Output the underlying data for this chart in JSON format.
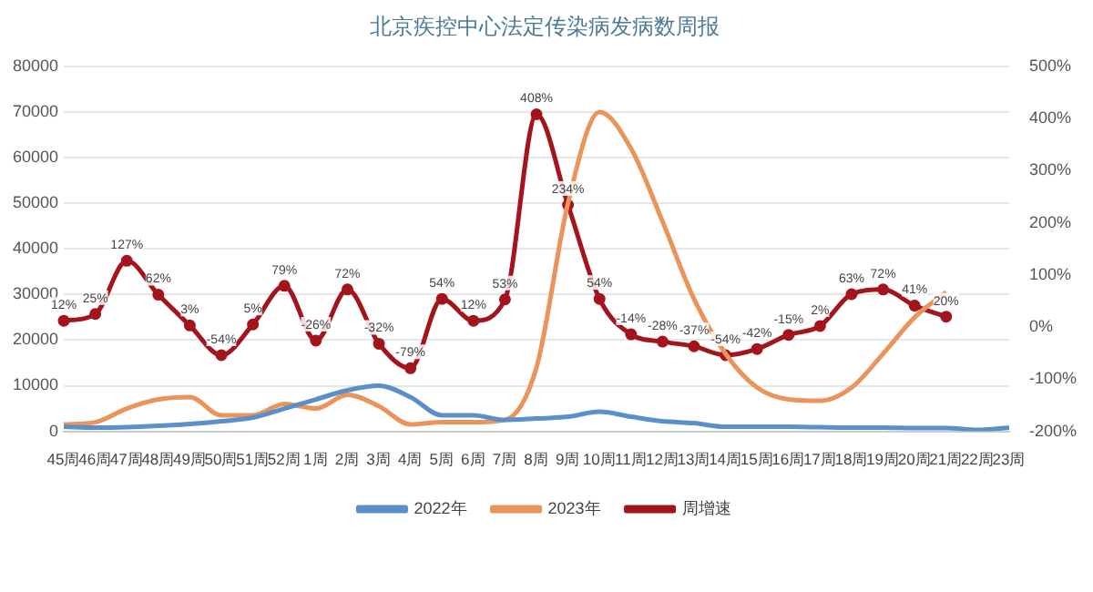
{
  "chart_data": {
    "type": "line",
    "title": "北京疾控中心法定传染病发病数周报",
    "categories": [
      "45周",
      "46周",
      "47周",
      "48周",
      "49周",
      "50周",
      "51周",
      "52周",
      "1周",
      "2周",
      "3周",
      "4周",
      "5周",
      "6周",
      "7周",
      "8周",
      "9周",
      "10周",
      "11周",
      "12周",
      "13周",
      "14周",
      "15周",
      "16周",
      "17周",
      "18周",
      "19周",
      "20周",
      "21周",
      "22周",
      "23周"
    ],
    "series": [
      {
        "name": "2022年",
        "color": "#5b8fc9",
        "marker": "none",
        "values": [
          1000,
          800,
          900,
          1200,
          1600,
          2200,
          3000,
          5000,
          7000,
          9000,
          10000,
          7500,
          3500,
          3500,
          2500,
          2800,
          3200,
          4300,
          3200,
          2200,
          1800,
          1000,
          1000,
          1000,
          900,
          800,
          800,
          700,
          700,
          300,
          800
        ]
      },
      {
        "name": "2023年",
        "color": "#e8945a",
        "marker": "none",
        "values": [
          1500,
          2000,
          5000,
          7000,
          7500,
          3500,
          3500,
          6000,
          5000,
          8000,
          5500,
          1500,
          2000,
          2000,
          2500,
          14000,
          50000,
          70000,
          62000,
          46000,
          29000,
          17000,
          9600,
          7000,
          6700,
          9600,
          17000,
          25000,
          30500,
          null,
          null
        ]
      },
      {
        "name": "周增速",
        "color": "#a3141c",
        "marker": "circle",
        "axis": "y2",
        "values": [
          12,
          25,
          127,
          62,
          3,
          -54,
          5,
          79,
          -26,
          72,
          -32,
          -79,
          54,
          12,
          53,
          408,
          234,
          54,
          -14,
          -28,
          -37,
          -54,
          -42,
          -15,
          2,
          63,
          72,
          41,
          20,
          null,
          null
        ],
        "value_labels": [
          "12%",
          "25%",
          "127%",
          "62%",
          "3%",
          "-54%",
          "5%",
          "79%",
          "-26%",
          "72%",
          "-32%",
          "-79%",
          "54%",
          "12%",
          "53%",
          "408%",
          "234%",
          "54%",
          "-14%",
          "-28%",
          "-37%",
          "-54%",
          "-42%",
          "-15%",
          "2%",
          "63%",
          "72%",
          "41%",
          "20%",
          null,
          null
        ]
      }
    ],
    "ylim": [
      0,
      80000
    ],
    "yticks": [
      0,
      10000,
      20000,
      30000,
      40000,
      50000,
      60000,
      70000,
      80000
    ],
    "y2lim": [
      -200,
      500
    ],
    "y2ticks": [
      {
        "value": -200,
        "label": "-200%"
      },
      {
        "value": -100,
        "label": "-100%"
      },
      {
        "value": 0,
        "label": "0%"
      },
      {
        "value": 100,
        "label": "100%"
      },
      {
        "value": 200,
        "label": "200%"
      },
      {
        "value": 300,
        "label": "300%"
      },
      {
        "value": 400,
        "label": "400%"
      },
      {
        "value": 500,
        "label": "500%"
      }
    ],
    "grid": "y",
    "legend": "bottom"
  }
}
